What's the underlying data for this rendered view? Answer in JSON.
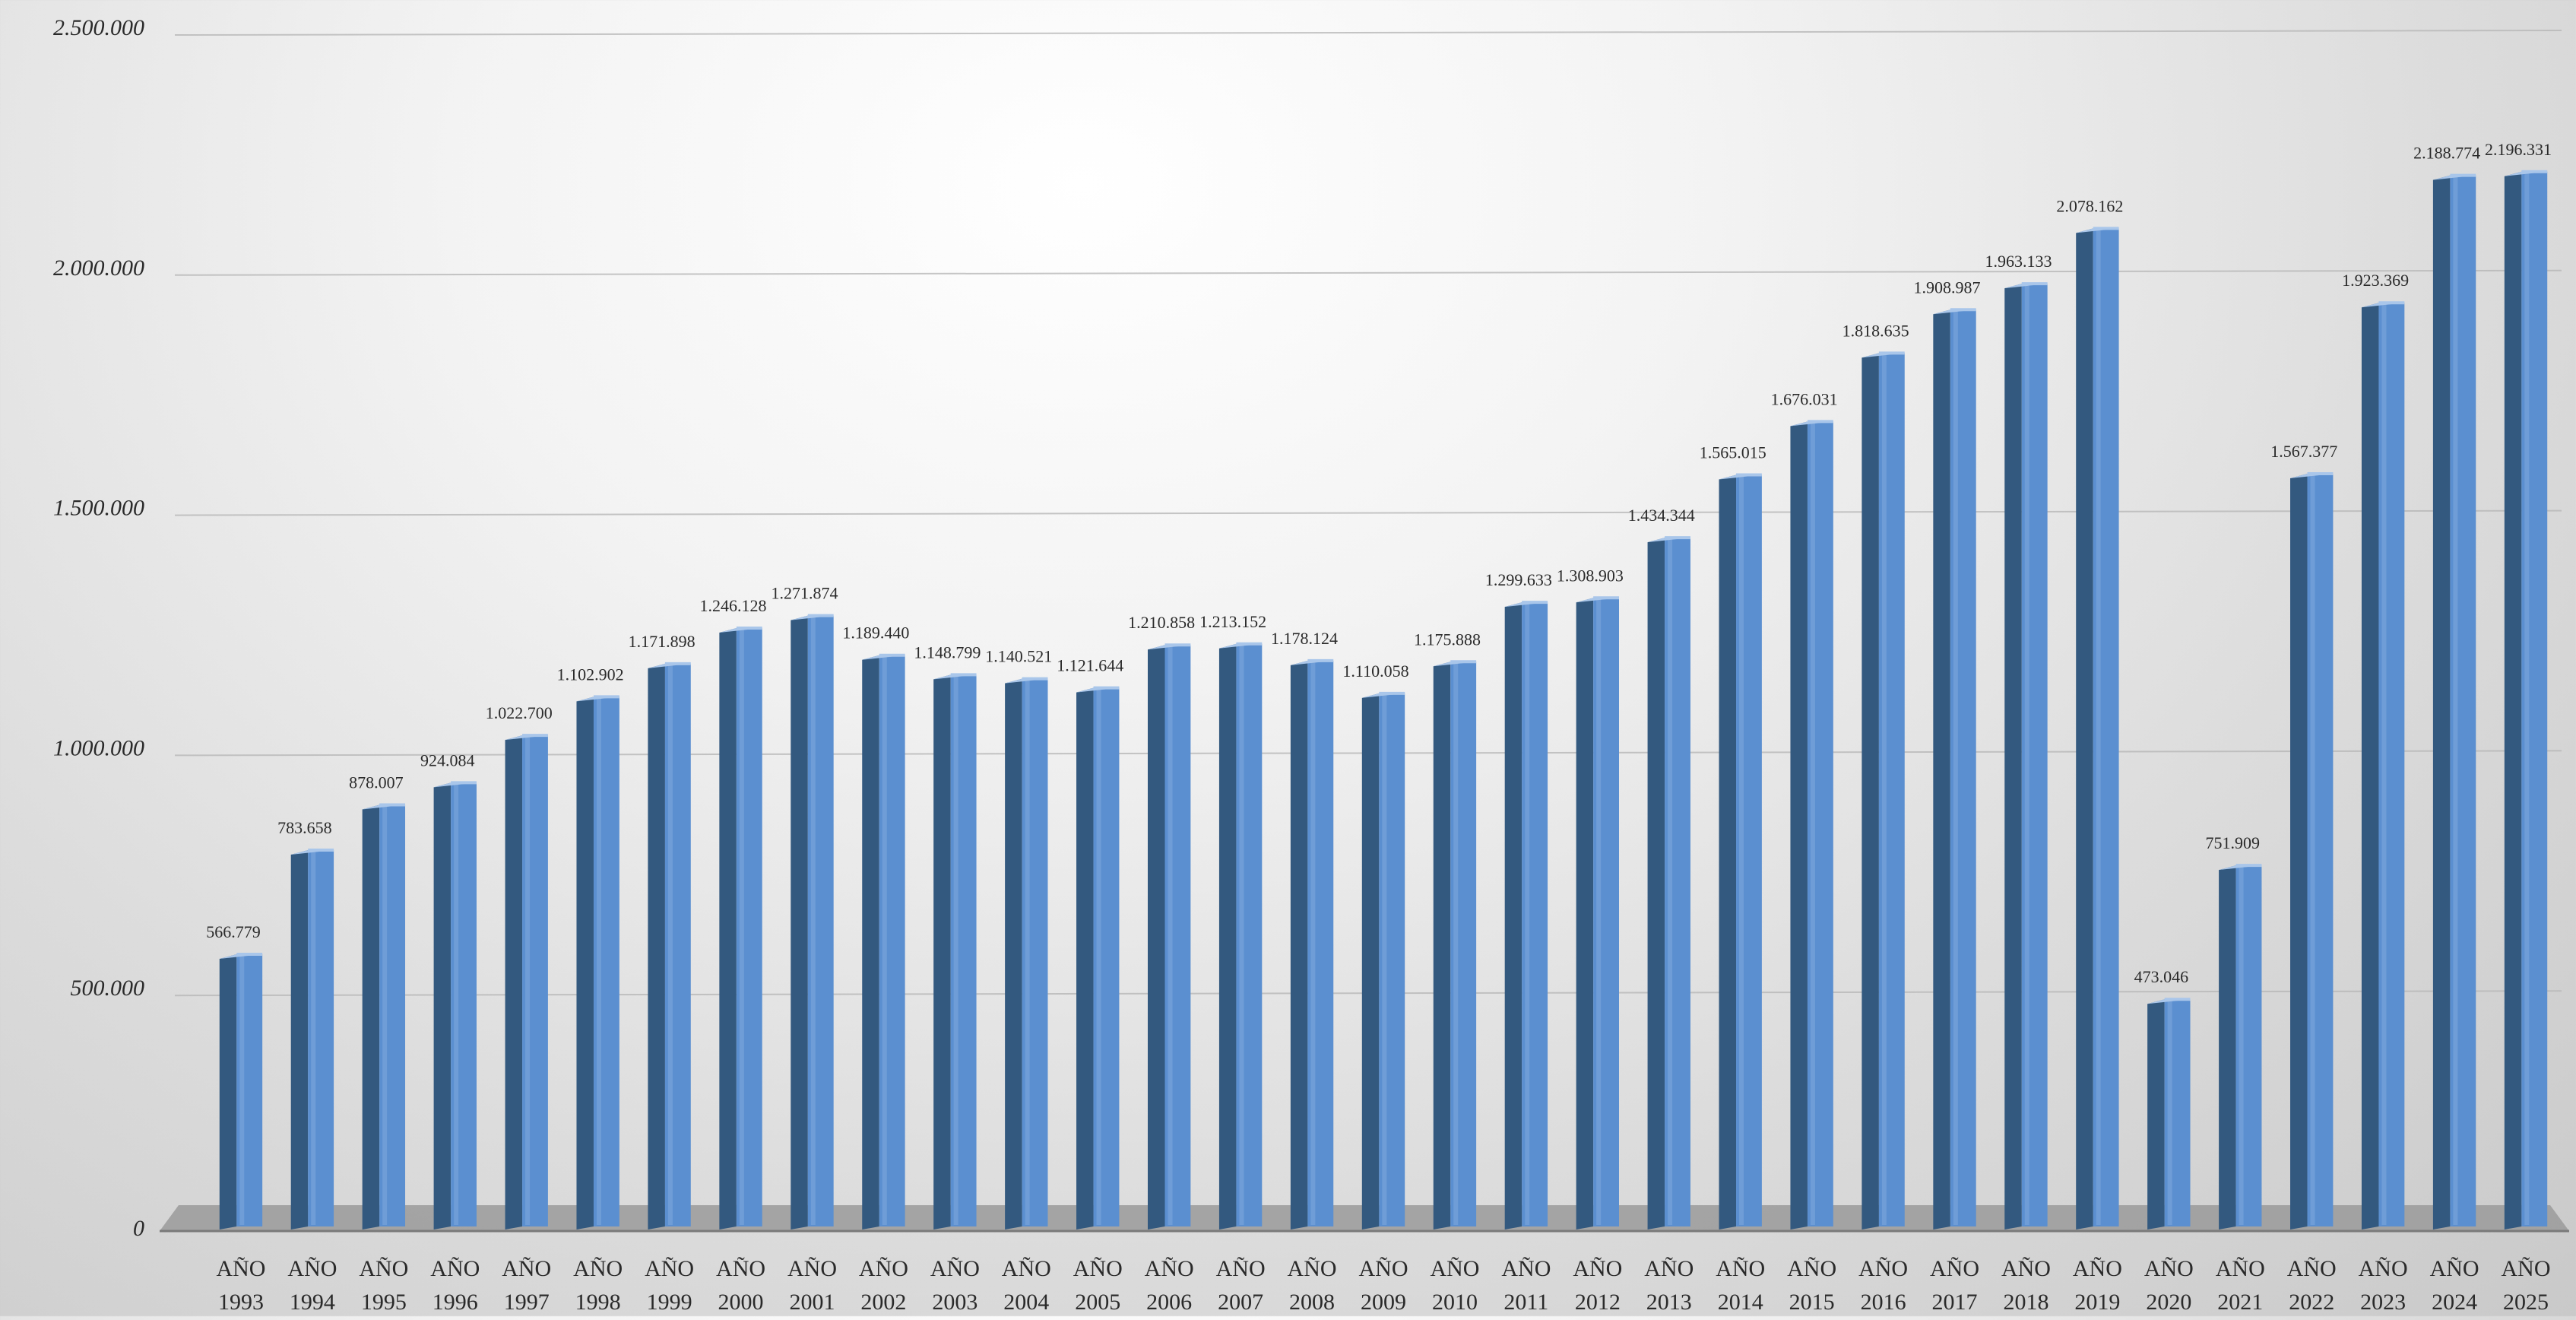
{
  "chart_data": {
    "type": "bar",
    "title": "",
    "xlabel": "",
    "ylabel": "",
    "ylim": [
      0,
      2500000
    ],
    "yticks": [
      0,
      500000,
      1000000,
      1500000,
      2000000,
      2500000
    ],
    "ytick_labels": [
      "0",
      "500.000",
      "1.000.000",
      "1.500.000",
      "2.000.000",
      "2.500.000"
    ],
    "grid": true,
    "legend": "none",
    "bar_style": "3d-column",
    "colors": {
      "bar_front": "#5b8fd0",
      "bar_side": "#33597f",
      "bar_top": "#a9c6ea",
      "floor": "#9a9a9a",
      "gridline": "#b8b8b8",
      "label_text": "#2a2a2a"
    },
    "categories": [
      [
        "AÑO",
        "1993"
      ],
      [
        "AÑO",
        "1994"
      ],
      [
        "AÑO",
        "1995"
      ],
      [
        "AÑO",
        "1996"
      ],
      [
        "AÑO",
        "1997"
      ],
      [
        "AÑO",
        "1998"
      ],
      [
        "AÑO",
        "1999"
      ],
      [
        "AÑO",
        "2000"
      ],
      [
        "AÑO",
        "2001"
      ],
      [
        "AÑO",
        "2002"
      ],
      [
        "AÑO",
        "2003"
      ],
      [
        "AÑO",
        "2004"
      ],
      [
        "AÑO",
        "2005"
      ],
      [
        "AÑO",
        "2006"
      ],
      [
        "AÑO",
        "2007"
      ],
      [
        "AÑO",
        "2008"
      ],
      [
        "AÑO",
        "2009"
      ],
      [
        "AÑO",
        "2010"
      ],
      [
        "AÑO",
        "2011"
      ],
      [
        "AÑO",
        "2012"
      ],
      [
        "AÑO",
        "2013"
      ],
      [
        "AÑO",
        "2014"
      ],
      [
        "AÑO",
        "2015"
      ],
      [
        "AÑO",
        "2016"
      ],
      [
        "AÑO",
        "2017"
      ],
      [
        "AÑO",
        "2018"
      ],
      [
        "AÑO",
        "2019"
      ],
      [
        "AÑO",
        "2020"
      ],
      [
        "AÑO",
        "2021"
      ],
      [
        "AÑO",
        "2022"
      ],
      [
        "AÑO",
        "2023"
      ],
      [
        "AÑO",
        "2024"
      ],
      [
        "AÑO",
        "2025"
      ]
    ],
    "series": [
      {
        "values": [
          566779,
          783658,
          878007,
          924084,
          1022700,
          1102902,
          1171898,
          1246128,
          1271874,
          1189440,
          1148799,
          1140521,
          1121644,
          1210858,
          1213152,
          1178124,
          1110058,
          1175888,
          1299633,
          1308903,
          1434344,
          1565015,
          1676031,
          1818635,
          1908987,
          1963133,
          2078162,
          473046,
          751909,
          1567377,
          1923369,
          2188774,
          2196331
        ],
        "labels": [
          "566.779",
          "783.658",
          "878.007",
          "924.084",
          "1.022.700",
          "1.102.902",
          "1.171.898",
          "1.246.128",
          "1.271.874",
          "1.189.440",
          "1.148.799",
          "1.140.521",
          "1.121.644",
          "1.210.858",
          "1.213.152",
          "1.178.124",
          "1.110.058",
          "1.175.888",
          "1.299.633",
          "1.308.903",
          "1.434.344",
          "1.565.015",
          "1.676.031",
          "1.818.635",
          "1.908.987",
          "1.963.133",
          "2.078.162",
          "473.046",
          "751.909",
          "1.567.377",
          "1.923.369",
          "2.188.774",
          "2.196.331"
        ]
      }
    ]
  }
}
